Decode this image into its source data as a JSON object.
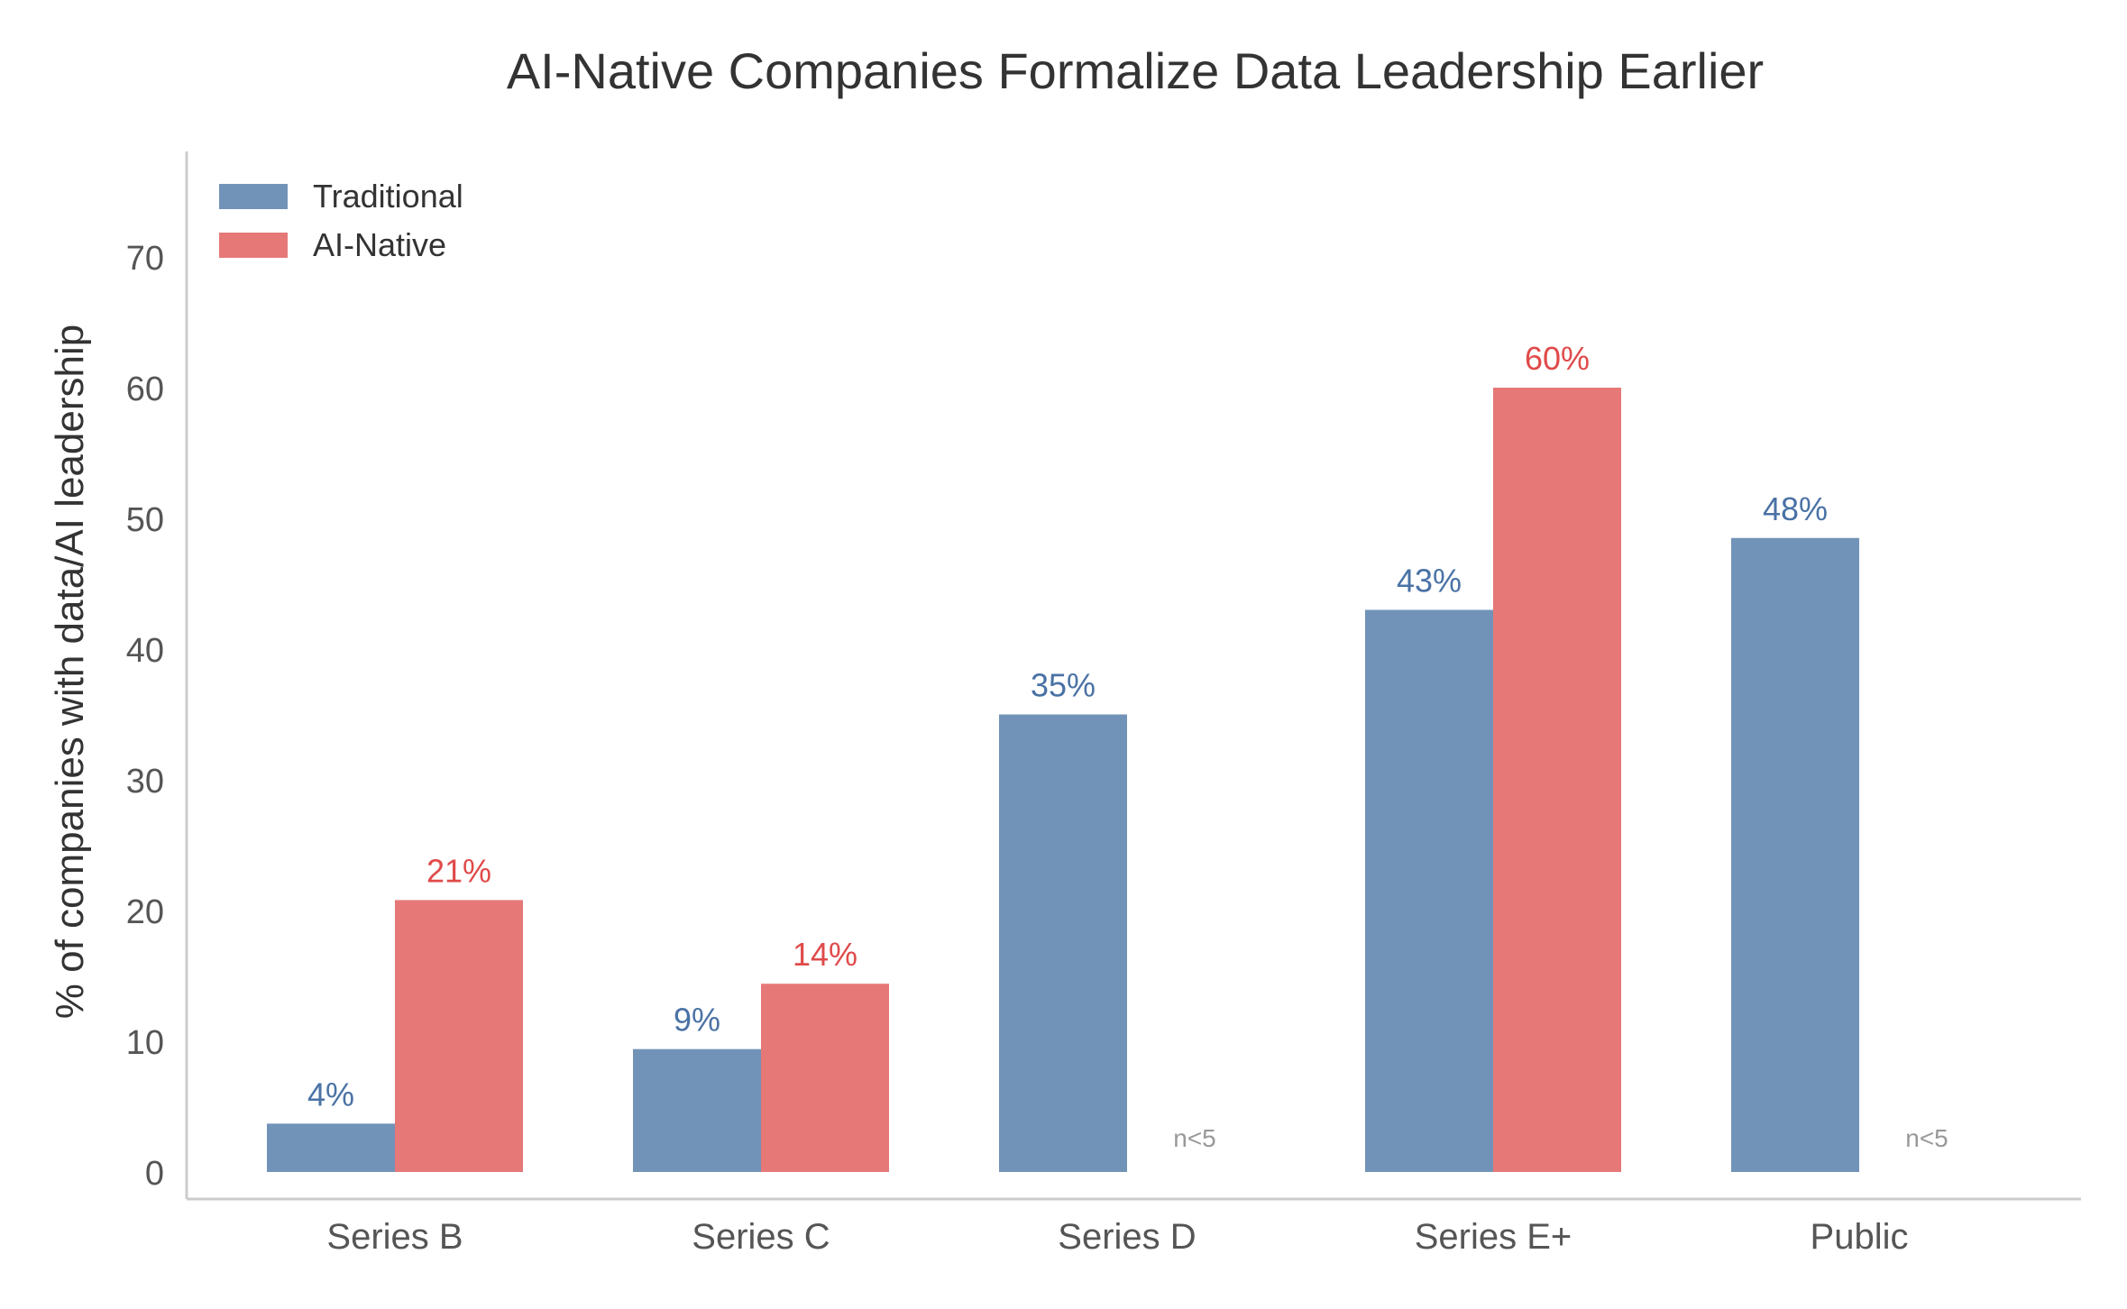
{
  "chart_data": {
    "type": "bar",
    "title": "AI-Native Companies Formalize Data Leadership Earlier",
    "xlabel": "",
    "ylabel": "% of companies with data/AI leadership",
    "ylim": [
      0,
      78
    ],
    "yticks": [
      0,
      10,
      20,
      30,
      40,
      50,
      60,
      70
    ],
    "grid": false,
    "legend_position": "top-left",
    "categories": [
      "Series B",
      "Series C",
      "Series D",
      "Series E+",
      "Public"
    ],
    "series": [
      {
        "name": "Traditional",
        "color": "#7293B8",
        "label_color": "#4A72A5",
        "values": [
          3.7,
          9.4,
          35,
          43,
          48.5
        ],
        "labels": [
          "4%",
          "9%",
          "35%",
          "43%",
          "48%"
        ]
      },
      {
        "name": "AI-Native",
        "color": "#E67878",
        "label_color": "#E04A4A",
        "values": [
          20.8,
          14.4,
          null,
          60,
          null
        ],
        "labels": [
          "21%",
          "14%",
          "n<5",
          "60%",
          "n<5"
        ]
      }
    ],
    "annotation_color": "#999999",
    "axis_color": "#CCCCCC",
    "text_color": "#333333",
    "tick_color": "#555555"
  }
}
